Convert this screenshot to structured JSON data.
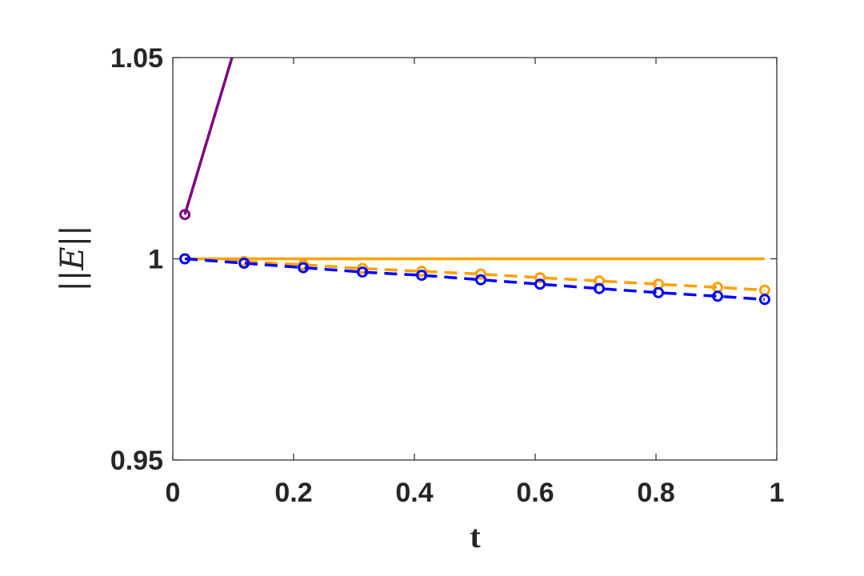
{
  "chart_data": {
    "type": "line",
    "xlabel": "t",
    "ylabel": "||E||",
    "xlim": [
      0,
      1
    ],
    "ylim": [
      0.95,
      1.05
    ],
    "x_ticks": [
      "0",
      "0.2",
      "0.4",
      "0.6",
      "0.8",
      "1"
    ],
    "y_ticks": [
      "0.95",
      "1",
      "1.05"
    ],
    "grid": false,
    "legend": "none",
    "series": [
      {
        "color": "#7f007f",
        "style": "solid",
        "marker": "none",
        "x": [
          0.02,
          0.098
        ],
        "y": [
          1.011,
          1.05
        ]
      },
      {
        "color": "#7f007f",
        "style": "none",
        "marker": "circle",
        "x": [
          0.02
        ],
        "y": [
          1.011
        ]
      },
      {
        "color": "#ff9f00",
        "style": "solid",
        "marker": "none",
        "x": [
          0.02,
          0.98
        ],
        "y": [
          1.0,
          1.0
        ]
      },
      {
        "color": "#ff9f00",
        "style": "dashed",
        "marker": "circle",
        "x": [
          0.02,
          0.118,
          0.216,
          0.314,
          0.412,
          0.51,
          0.608,
          0.706,
          0.804,
          0.902,
          0.98
        ],
        "y": [
          1.0,
          0.9993,
          0.9985,
          0.9976,
          0.9969,
          0.9962,
          0.9953,
          0.9945,
          0.9937,
          0.9929,
          0.9922
        ]
      },
      {
        "color": "#0000ff",
        "style": "dashed",
        "marker": "circle",
        "x": [
          0.02,
          0.118,
          0.216,
          0.314,
          0.412,
          0.51,
          0.608,
          0.706,
          0.804,
          0.902,
          0.98
        ],
        "y": [
          1.0,
          0.9989,
          0.9978,
          0.9967,
          0.9959,
          0.9948,
          0.9937,
          0.9926,
          0.9916,
          0.9907,
          0.9899
        ]
      }
    ]
  }
}
